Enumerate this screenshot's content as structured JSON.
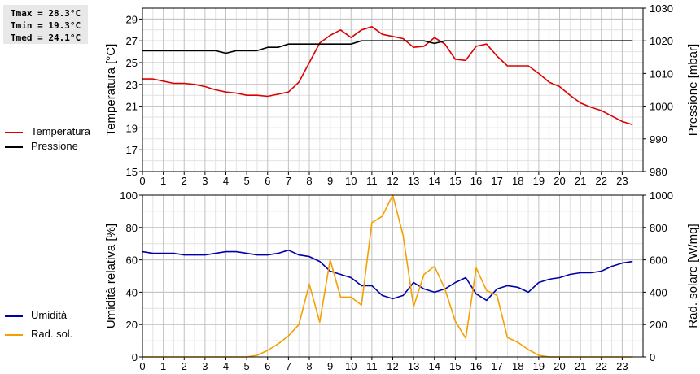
{
  "stats": {
    "tmax": "Tmax = 28.3°C",
    "tmin": "Tmin = 19.3°C",
    "tmed": "Tmed = 24.1°C"
  },
  "colors": {
    "temperatura": "#dd0000",
    "pressione": "#000000",
    "umidita": "#0000aa",
    "radsol": "#f5a000",
    "grid_major": "#c0c0c0",
    "grid_minor": "#e2e2e2"
  },
  "legend_top": [
    {
      "label": "Temperatura",
      "color": "#dd0000"
    },
    {
      "label": "Pressione",
      "color": "#000000"
    }
  ],
  "legend_bottom": [
    {
      "label": "Umidità",
      "color": "#0000aa"
    },
    {
      "label": "Rad. sol.",
      "color": "#f5a000"
    }
  ],
  "chart_data": [
    {
      "type": "line",
      "ylabel_left": "Temperatura [°C]",
      "ylabel_right": "Pressione [mbar]",
      "xlim": [
        0,
        24
      ],
      "xticks": [
        "0",
        "1",
        "2",
        "3",
        "4",
        "5",
        "6",
        "7",
        "8",
        "9",
        "10",
        "11",
        "12",
        "13",
        "14",
        "15",
        "16",
        "17",
        "18",
        "19",
        "20",
        "21",
        "22",
        "23"
      ],
      "ylim_left": [
        15,
        30
      ],
      "yticks_left": [
        "15",
        "17",
        "19",
        "21",
        "23",
        "25",
        "27",
        "29"
      ],
      "ylim_right": [
        980,
        1030
      ],
      "yticks_right": [
        "980",
        "990",
        "1000",
        "1010",
        "1020",
        "1030"
      ],
      "grid": true,
      "series": [
        {
          "name": "Temperatura",
          "axis": "left",
          "color": "#dd0000",
          "x": [
            0,
            0.5,
            1,
            1.5,
            2,
            2.5,
            3,
            3.5,
            4,
            4.5,
            5,
            5.5,
            6,
            6.5,
            7,
            7.5,
            8,
            8.5,
            9,
            9.5,
            10,
            10.5,
            11,
            11.5,
            12,
            12.5,
            13,
            13.5,
            14,
            14.5,
            15,
            15.5,
            16,
            16.5,
            17,
            17.5,
            18,
            18.5,
            19,
            19.5,
            20,
            20.5,
            21,
            21.5,
            22,
            22.5,
            23,
            23.5
          ],
          "y": [
            23.5,
            23.5,
            23.3,
            23.1,
            23.1,
            23.0,
            22.8,
            22.5,
            22.3,
            22.2,
            22.0,
            22.0,
            21.9,
            22.1,
            22.3,
            23.2,
            25.0,
            26.8,
            27.5,
            28.0,
            27.3,
            28.0,
            28.3,
            27.6,
            27.4,
            27.2,
            26.4,
            26.5,
            27.3,
            26.7,
            25.3,
            25.2,
            26.5,
            26.7,
            25.6,
            24.7,
            24.7,
            24.7,
            24.0,
            23.2,
            22.8,
            22.0,
            21.3,
            20.9,
            20.6,
            20.1,
            19.6,
            19.3
          ]
        },
        {
          "name": "Pressione",
          "axis": "right",
          "color": "#000000",
          "x": [
            0,
            0.5,
            1,
            1.5,
            2,
            2.5,
            3,
            3.5,
            4,
            4.5,
            5,
            5.5,
            6,
            6.5,
            7,
            7.5,
            8,
            8.5,
            9,
            9.5,
            10,
            10.5,
            11,
            11.5,
            12,
            12.5,
            13,
            13.5,
            14,
            14.5,
            15,
            15.5,
            16,
            16.5,
            17,
            17.5,
            18,
            18.5,
            19,
            19.5,
            20,
            20.5,
            21,
            21.5,
            22,
            22.5,
            23,
            23.5
          ],
          "y": [
            1017,
            1017,
            1017,
            1017,
            1017,
            1017,
            1017,
            1017,
            1016.2,
            1017,
            1017,
            1017,
            1018,
            1018,
            1019,
            1019,
            1019,
            1019,
            1019,
            1019,
            1019,
            1020,
            1020,
            1020,
            1020,
            1020,
            1020,
            1020,
            1019.2,
            1020,
            1020,
            1020,
            1020,
            1020,
            1020,
            1020,
            1020,
            1020,
            1020,
            1020,
            1020,
            1020,
            1020,
            1020,
            1020,
            1020,
            1020,
            1020
          ]
        }
      ]
    },
    {
      "type": "line",
      "ylabel_left": "Umidità relativa [%]",
      "ylabel_right": "Rad. solare [W/mq]",
      "xlim": [
        0,
        24
      ],
      "xticks": [
        "0",
        "1",
        "2",
        "3",
        "4",
        "5",
        "6",
        "7",
        "8",
        "9",
        "10",
        "11",
        "12",
        "13",
        "14",
        "15",
        "16",
        "17",
        "18",
        "19",
        "20",
        "21",
        "22",
        "23"
      ],
      "ylim_left": [
        0,
        100
      ],
      "yticks_left": [
        "0",
        "20",
        "40",
        "60",
        "80",
        "100"
      ],
      "ylim_right": [
        0,
        1000
      ],
      "yticks_right": [
        "0",
        "200",
        "400",
        "600",
        "800",
        "1000"
      ],
      "grid": true,
      "series": [
        {
          "name": "Umidità",
          "axis": "left",
          "color": "#0000aa",
          "x": [
            0,
            0.5,
            1,
            1.5,
            2,
            2.5,
            3,
            3.5,
            4,
            4.5,
            5,
            5.5,
            6,
            6.5,
            7,
            7.5,
            8,
            8.5,
            9,
            9.5,
            10,
            10.5,
            11,
            11.5,
            12,
            12.5,
            13,
            13.5,
            14,
            14.5,
            15,
            15.5,
            16,
            16.5,
            17,
            17.5,
            18,
            18.5,
            19,
            19.5,
            20,
            20.5,
            21,
            21.5,
            22,
            22.5,
            23,
            23.5
          ],
          "y": [
            65,
            64,
            64,
            64,
            63,
            63,
            63,
            64,
            65,
            65,
            64,
            63,
            63,
            64,
            66,
            63,
            62,
            59,
            53,
            51,
            49,
            44,
            44,
            38,
            36,
            38,
            46,
            42,
            40,
            42,
            46,
            49,
            39,
            35,
            42,
            44,
            43,
            40,
            46,
            48,
            49,
            51,
            52,
            52,
            53,
            56,
            58,
            59
          ]
        },
        {
          "name": "Rad. sol.",
          "axis": "right",
          "color": "#f5a000",
          "x": [
            0,
            0.5,
            1,
            1.5,
            2,
            2.5,
            3,
            3.5,
            4,
            4.5,
            5,
            5.5,
            6,
            6.5,
            7,
            7.5,
            8,
            8.5,
            9,
            9.5,
            10,
            10.5,
            11,
            11.5,
            12,
            12.5,
            13,
            13.5,
            14,
            14.5,
            15,
            15.5,
            16,
            16.5,
            17,
            17.5,
            18,
            18.5,
            19,
            19.5,
            20,
            20.5,
            21,
            21.5,
            22,
            22.5,
            23,
            23.5
          ],
          "y": [
            0,
            0,
            0,
            0,
            0,
            0,
            0,
            0,
            0,
            0,
            0,
            10,
            40,
            80,
            130,
            200,
            450,
            215,
            600,
            370,
            370,
            320,
            830,
            870,
            1000,
            750,
            310,
            510,
            560,
            420,
            220,
            115,
            550,
            410,
            380,
            120,
            90,
            45,
            10,
            0,
            0,
            0,
            0,
            0,
            0,
            0,
            0,
            0
          ]
        }
      ]
    }
  ]
}
